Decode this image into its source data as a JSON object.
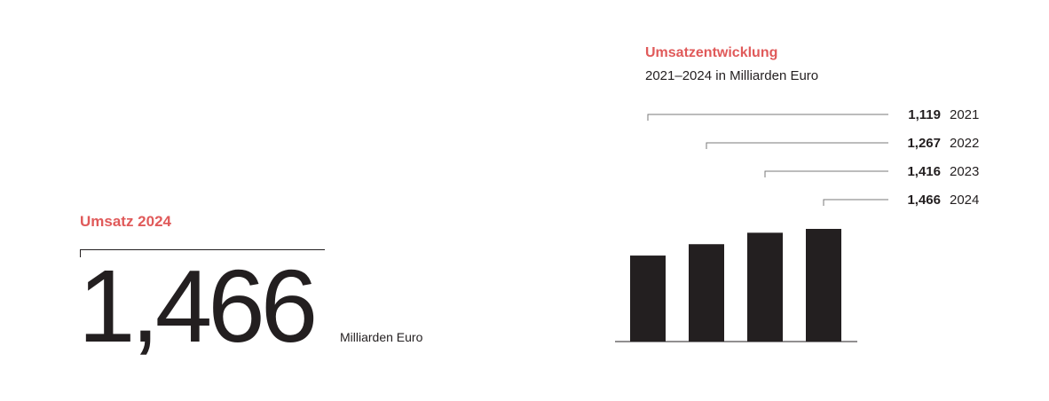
{
  "kpi": {
    "title": "Umsatz 2024",
    "value": "1,466",
    "unit": "Milliarden Euro"
  },
  "colors": {
    "accent": "#e05a5a",
    "bar": "#231f20",
    "text": "#231f20",
    "leader": "#7a7a7a"
  },
  "chart_data": {
    "type": "bar",
    "title": "Umsatzentwicklung",
    "subtitle": "2021–2024 in Milliarden Euro",
    "categories": [
      "2021",
      "2022",
      "2023",
      "2024"
    ],
    "values": [
      1.119,
      1.267,
      1.416,
      1.466
    ],
    "value_labels": [
      "1,119",
      "1,267",
      "1,416",
      "1,466"
    ],
    "ylim": [
      0,
      1.466
    ],
    "grid": false,
    "legend": "none"
  }
}
